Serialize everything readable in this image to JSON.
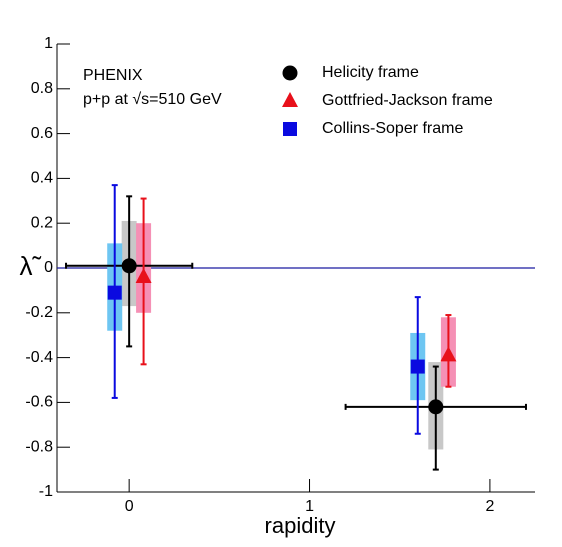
{
  "chart_data": {
    "type": "scatter",
    "annotations": [
      "PHENIX",
      "p+p at √s=510 GeV"
    ],
    "x_label": "rapidity",
    "y_label": "λ̃",
    "xlim": [
      -0.4,
      2.25
    ],
    "ylim": [
      -1,
      1
    ],
    "xticks": [
      0,
      1,
      2
    ],
    "yticks": [
      1,
      0.8,
      0.6,
      0.4,
      0.2,
      0,
      -0.2,
      -0.4,
      -0.6,
      -0.8,
      -1
    ],
    "reference_line": 0,
    "series": [
      {
        "name": "Helicity frame",
        "marker": "circle",
        "color": "#000000",
        "sys_color": "#c8c8c8",
        "x": [
          0.0,
          1.7
        ],
        "values": [
          0.01,
          -0.62
        ],
        "x_low": [
          -0.35,
          1.2
        ],
        "x_high": [
          0.35,
          2.2
        ],
        "err_low": [
          -0.35,
          -0.9
        ],
        "err_high": [
          0.32,
          -0.44
        ],
        "sys_low": [
          -0.17,
          -0.81
        ],
        "sys_high": [
          0.21,
          -0.42
        ]
      },
      {
        "name": "Gottfried-Jackson frame",
        "marker": "triangle",
        "color": "#e8101a",
        "sys_color": "#f590b5",
        "x": [
          0.08,
          1.77
        ],
        "values": [
          -0.04,
          -0.39
        ],
        "err_low": [
          -0.43,
          -0.53
        ],
        "err_high": [
          0.31,
          -0.21
        ],
        "sys_low": [
          -0.2,
          -0.53
        ],
        "sys_high": [
          0.2,
          -0.22
        ]
      },
      {
        "name": "Collins-Soper frame",
        "marker": "square",
        "color": "#0a0ae0",
        "sys_color": "#6ec6f2",
        "x": [
          -0.08,
          1.6
        ],
        "values": [
          -0.11,
          -0.44
        ],
        "err_low": [
          -0.58,
          -0.74
        ],
        "err_high": [
          0.37,
          -0.13
        ],
        "sys_low": [
          -0.28,
          -0.59
        ],
        "sys_high": [
          0.11,
          -0.29
        ]
      }
    ]
  }
}
